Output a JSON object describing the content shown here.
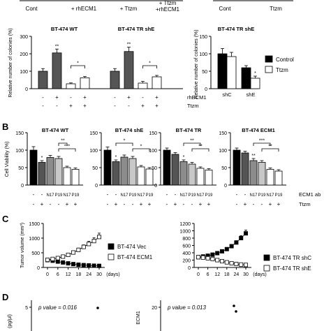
{
  "figure": {
    "top_row": {
      "labels_left": [
        "Cont",
        "+ rhECM1",
        "+ Ttzm",
        "+ Ttzm",
        "+rhECM1"
      ],
      "labels_right": [
        "Cont",
        "Ttzm"
      ]
    },
    "panel_letters": [
      "B",
      "C",
      "D"
    ],
    "colors": {
      "black": "#000000",
      "dark_gray": "#555555",
      "gray": "#8c8c8c",
      "light_gray": "#c8c8c8",
      "white": "#ffffff"
    }
  },
  "chart_data": [
    {
      "id": "A-left",
      "type": "bar",
      "ylabel": "Relative number of colonies (%)",
      "ylim": [
        0,
        300
      ],
      "yticks": [
        "0",
        "100",
        "200",
        "300"
      ],
      "groups": [
        {
          "title": "BT-474 WT",
          "values": [
            100,
            205,
            28,
            62
          ],
          "errors": [
            15,
            22,
            5,
            8
          ],
          "fills": [
            "dark_gray",
            "dark_gray",
            "white",
            "white"
          ],
          "sig": [
            "",
            "**",
            "",
            ""
          ],
          "brackets": [
            {
              "from": 2,
              "to": 3,
              "label": "*"
            }
          ]
        },
        {
          "title": "BT-474 TR shE",
          "values": [
            100,
            213,
            32,
            68
          ],
          "errors": [
            15,
            25,
            10,
            8
          ],
          "fills": [
            "dark_gray",
            "dark_gray",
            "white",
            "white"
          ],
          "sig": [
            "",
            "**",
            "",
            ""
          ],
          "brackets": [
            {
              "from": 2,
              "to": 3,
              "label": "*"
            }
          ]
        }
      ],
      "factor_rows": [
        {
          "label": "rhECM1",
          "values": [
            "-",
            "+",
            "-",
            "+",
            "-",
            "+",
            "-",
            "+"
          ]
        },
        {
          "label": "Ttzm",
          "values": [
            "-",
            "-",
            "+",
            "+",
            "-",
            "-",
            "+",
            "+"
          ]
        }
      ]
    },
    {
      "id": "A-right",
      "type": "bar",
      "title": "BT-474 TR shE",
      "ylabel": "Relative number of colonies (%)",
      "ylim": [
        0,
        150
      ],
      "yticks": [
        "0",
        "50",
        "100",
        "150"
      ],
      "categories": [
        "shC",
        "shE"
      ],
      "series": [
        {
          "name": "Control",
          "fill": "black",
          "values": [
            100,
            60
          ],
          "errors": [
            15,
            6
          ]
        },
        {
          "name": "Ttzm",
          "fill": "white",
          "values": [
            92,
            30
          ],
          "errors": [
            12,
            6
          ]
        }
      ],
      "sig": [
        "",
        "*"
      ]
    },
    {
      "id": "B",
      "type": "bar",
      "ylabel": "Cell Viability (%)",
      "ylim": [
        0,
        150
      ],
      "yticks": [
        "0",
        "50",
        "100",
        "150"
      ],
      "panels": [
        {
          "title": "BT-474 WT",
          "values": [
            100,
            65,
            79,
            76,
            50,
            45
          ],
          "errors": [
            10,
            5,
            6,
            6,
            4,
            4
          ],
          "sig": [
            "",
            "*",
            "",
            "",
            "",
            ""
          ],
          "brackets": [
            {
              "from": 3,
              "to": 4,
              "label": "**"
            },
            {
              "from": 3,
              "to": 5,
              "label": "***"
            }
          ]
        },
        {
          "title": "BT-474 shE",
          "values": [
            100,
            67,
            80,
            76,
            52,
            46
          ],
          "errors": [
            9,
            5,
            6,
            6,
            4,
            4
          ],
          "sig": [
            "",
            "*",
            "",
            "",
            "",
            ""
          ],
          "brackets": [
            {
              "from": 1,
              "to": 3,
              "label": "*"
            },
            {
              "from": 3,
              "to": 5,
              "label": "*"
            }
          ]
        },
        {
          "title": "BT-474 TR",
          "values": [
            100,
            88,
            67,
            60,
            48,
            43
          ],
          "errors": [
            6,
            5,
            5,
            5,
            4,
            4
          ],
          "sig": [
            "",
            "",
            "*",
            "",
            "",
            ""
          ],
          "brackets": [
            {
              "from": 2,
              "to": 4,
              "label": "**"
            },
            {
              "from": 3,
              "to": 5,
              "label": "**"
            }
          ]
        },
        {
          "title": "BT-474 ECM1",
          "values": [
            100,
            92,
            70,
            65,
            45,
            40
          ],
          "errors": [
            6,
            5,
            6,
            5,
            4,
            4
          ],
          "sig": [
            "",
            "",
            "**",
            "",
            "",
            ""
          ],
          "brackets": [
            {
              "from": 2,
              "to": 4,
              "label": "***"
            },
            {
              "from": 3,
              "to": 5,
              "label": "**"
            }
          ]
        }
      ],
      "fills": [
        "black",
        "dark_gray",
        "gray",
        "light_gray",
        "white",
        "white"
      ],
      "factor_rows": [
        {
          "label": "ECM1 ab",
          "values": [
            "-",
            "-",
            "N17",
            "P19",
            "N17",
            "P19"
          ]
        },
        {
          "label": "Ttzm",
          "values": [
            "-",
            "+",
            "-",
            "-",
            "+",
            "+"
          ]
        }
      ]
    },
    {
      "id": "C-left",
      "type": "line",
      "ylabel": "Tumor volume (mm³)",
      "xlabel": "(days)",
      "ylim": [
        0,
        1500
      ],
      "yticks": [
        "0",
        "500",
        "1000",
        "1500"
      ],
      "xticks": [
        "0",
        "6",
        "12",
        "18",
        "24",
        "30"
      ],
      "x": [
        0,
        3,
        6,
        9,
        12,
        15,
        18,
        21,
        24,
        27,
        30
      ],
      "series": [
        {
          "name": "BT-474 Vec",
          "marker": "filled",
          "values": [
            250,
            230,
            200,
            170,
            140,
            115,
            95,
            80,
            70,
            60,
            55
          ]
        },
        {
          "name": "BT-474 ECM1",
          "marker": "open",
          "values": [
            260,
            290,
            320,
            370,
            430,
            510,
            600,
            700,
            800,
            900,
            1040
          ],
          "errors": [
            20,
            20,
            25,
            30,
            40,
            50,
            60,
            70,
            90,
            110,
            130
          ]
        }
      ],
      "legend": "right"
    },
    {
      "id": "C-right",
      "type": "line",
      "xlabel": "(days)",
      "ylim": [
        0,
        1200
      ],
      "yticks": [
        "0",
        "200",
        "400",
        "600",
        "800",
        "1000",
        "1200"
      ],
      "xticks": [
        "0",
        "6",
        "12",
        "18",
        "24",
        "30"
      ],
      "x": [
        0,
        3,
        6,
        9,
        12,
        15,
        18,
        21,
        24,
        27,
        30
      ],
      "series": [
        {
          "name": "BT-474 TR shC",
          "marker": "filled",
          "values": [
            280,
            300,
            320,
            350,
            390,
            440,
            500,
            580,
            680,
            800,
            930
          ],
          "errors": [
            20,
            20,
            20,
            25,
            25,
            30,
            35,
            40,
            50,
            70,
            90
          ]
        },
        {
          "name": "BT-474 TR shE",
          "marker": "open",
          "values": [
            280,
            270,
            250,
            230,
            200,
            170,
            140,
            115,
            95,
            80,
            70
          ]
        }
      ],
      "legend": "bottom-right"
    },
    {
      "id": "D",
      "type": "scatter",
      "ylabel_left_fragment": "(pg/μl)",
      "ylabel_right_fragment": "ECM1",
      "annotations": [
        {
          "text": "p value = 0.016",
          "tick": "5"
        },
        {
          "text": "p value = 0.013",
          "tick": "20"
        }
      ]
    }
  ]
}
